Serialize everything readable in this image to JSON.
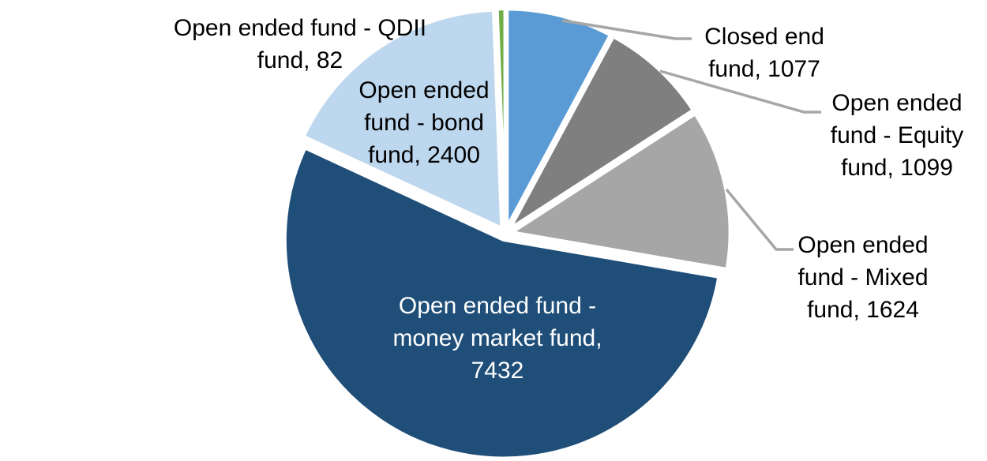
{
  "chart_data": {
    "type": "pie",
    "title": "",
    "series": [
      {
        "name": "Closed end fund",
        "value": 1077,
        "color": "#5B9BD5"
      },
      {
        "name": "Open ended fund - Equity fund",
        "value": 1099,
        "color": "#7F7F7F"
      },
      {
        "name": "Open ended fund - Mixed fund",
        "value": 1624,
        "color": "#A6A6A6"
      },
      {
        "name": "Open ended fund - money market fund",
        "value": 7432,
        "color": "#1F4E79"
      },
      {
        "name": "Open ended fund - bond fund",
        "value": 2400,
        "color": "#BDD7EE"
      },
      {
        "name": "Open ended fund - QDII fund",
        "value": 82,
        "color": "#70AD47"
      }
    ],
    "total": 13714,
    "start_angle_deg": 0,
    "direction": "clockwise",
    "slice_border_color": "#FFFFFF",
    "leader_line_color": "#A6A6A6",
    "label_text_color": "#000000",
    "inner_label_text_color": "#FFFFFF",
    "legend": "none",
    "data_labels": "category name, value"
  },
  "labels": {
    "qdii": {
      "lines": [
        "Open ended fund - QDII",
        "fund, 82"
      ]
    },
    "bond": {
      "lines": [
        "Open ended",
        "fund - bond",
        "fund, 2400"
      ]
    },
    "money_market": {
      "lines": [
        "Open ended fund -",
        "money market fund,",
        "7432"
      ]
    },
    "closed_end": {
      "lines": [
        "Closed end",
        "fund, 1077"
      ]
    },
    "equity": {
      "lines": [
        "Open ended",
        "fund - Equity",
        "fund, 1099"
      ]
    },
    "mixed": {
      "lines": [
        "Open ended",
        "fund - Mixed",
        "fund, 1624"
      ]
    }
  }
}
